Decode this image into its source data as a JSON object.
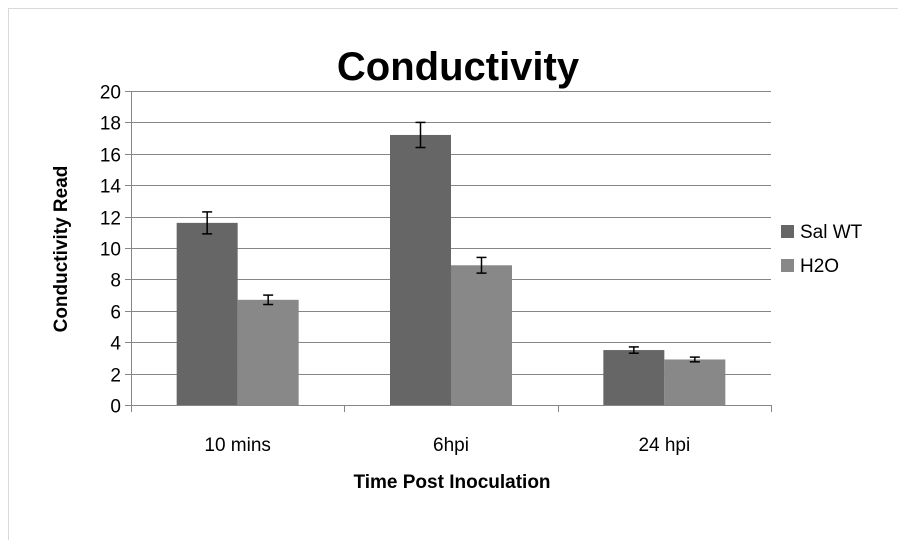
{
  "chart_data": {
    "type": "bar",
    "title": "Conductivity",
    "xlabel": "Time Post Inoculation",
    "ylabel": "Conductivity Read",
    "ylim": [
      0,
      20
    ],
    "yticks": [
      0,
      2,
      4,
      6,
      8,
      10,
      12,
      14,
      16,
      18,
      20
    ],
    "categories": [
      "10 mins",
      "6hpi",
      "24 hpi"
    ],
    "series": [
      {
        "name": "Sal WT",
        "color": "#666666",
        "values": [
          11.6,
          17.2,
          3.5
        ],
        "errors": [
          0.7,
          0.8,
          0.2
        ]
      },
      {
        "name": "H2O",
        "color": "#888888",
        "values": [
          6.7,
          8.9,
          2.9
        ],
        "errors": [
          0.3,
          0.5,
          0.15
        ]
      }
    ],
    "grid": true,
    "legend_position": "right"
  }
}
